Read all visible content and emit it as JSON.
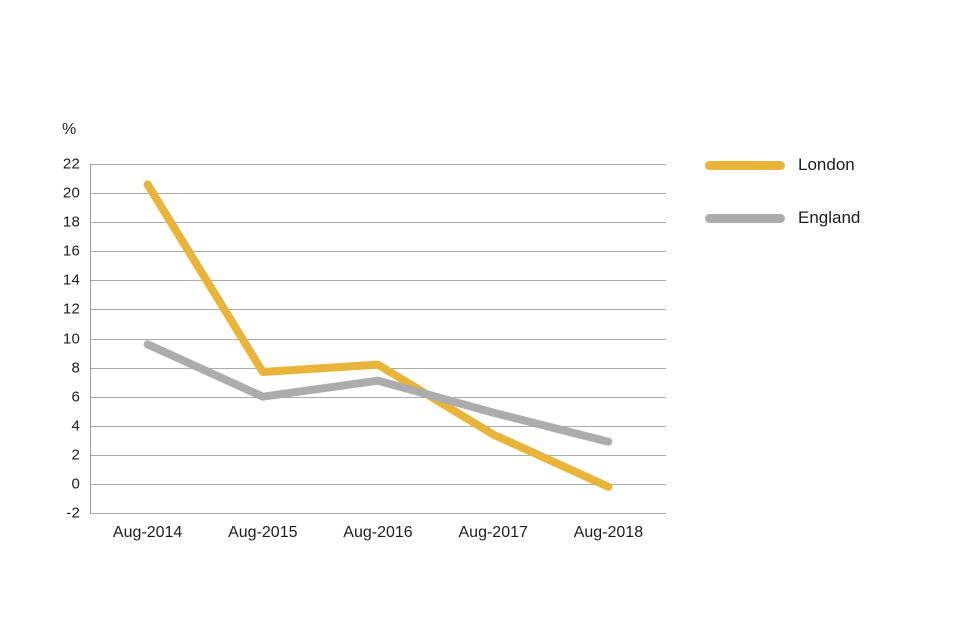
{
  "chart_data": {
    "type": "line",
    "title": "",
    "unit_label": "%",
    "categories": [
      "Aug-2014",
      "Aug-2015",
      "Aug-2016",
      "Aug-2017",
      "Aug-2018"
    ],
    "series": [
      {
        "name": "London",
        "color": "#E8B53A",
        "values": [
          20.6,
          7.7,
          8.2,
          3.4,
          -0.2
        ]
      },
      {
        "name": "England",
        "color": "#ACACAC",
        "values": [
          9.6,
          6.0,
          7.1,
          4.9,
          2.9
        ]
      }
    ],
    "ylim": [
      -2,
      22
    ],
    "ytick_step": 2,
    "y_ticks": [
      22,
      20,
      18,
      16,
      14,
      12,
      10,
      8,
      6,
      4,
      2,
      0,
      -2
    ],
    "grid": true,
    "legend_position": "right",
    "colors": {
      "gridline": "#ABABAB",
      "axis_line": "#999999",
      "text": "#1d1d1d",
      "background": "#ffffff"
    }
  }
}
